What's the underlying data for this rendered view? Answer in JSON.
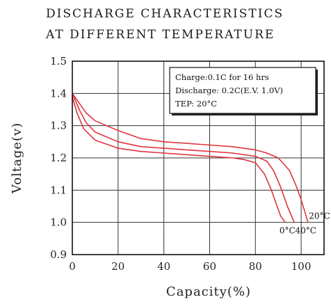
{
  "chart_data": {
    "type": "line",
    "title": [
      "DISCHARGE  CHARACTERISTICS",
      "AT  DIFFERENT  TEMPERATURE"
    ],
    "xlabel": "Capacity(%)",
    "ylabel": "Voltage(v)",
    "xlim": [
      0,
      110
    ],
    "ylim": [
      0.9,
      1.5
    ],
    "xticks": [
      "0",
      "20",
      "40",
      "60",
      "80",
      "100"
    ],
    "xtick_values": [
      0,
      20,
      40,
      60,
      80,
      100
    ],
    "yticks": [
      "0.9",
      "1.0",
      "1.1",
      "1.2",
      "1.3",
      "1.4",
      "1.5"
    ],
    "ytick_values": [
      0.9,
      1.0,
      1.1,
      1.2,
      1.3,
      1.4,
      1.5
    ],
    "grid": true,
    "line_color": "#e0343e",
    "annotation_box": [
      "Charge:0.1C  for  16  hrs",
      "Discharge:  0.2C(E.V.  1.0V)",
      "TEP:  20°C"
    ],
    "series": [
      {
        "name": "0°C",
        "label_anchor": [
          94,
          0.975
        ],
        "x": [
          0,
          2,
          5,
          10,
          20,
          30,
          40,
          50,
          60,
          70,
          75,
          80,
          84,
          87,
          89,
          91,
          93
        ],
        "y": [
          1.39,
          1.34,
          1.29,
          1.255,
          1.23,
          1.22,
          1.215,
          1.21,
          1.205,
          1.2,
          1.195,
          1.185,
          1.15,
          1.1,
          1.06,
          1.02,
          1.0
        ]
      },
      {
        "name": "40°C",
        "label_anchor": [
          102,
          0.975
        ],
        "x": [
          0,
          3,
          6,
          10,
          20,
          30,
          40,
          50,
          60,
          70,
          80,
          85,
          88,
          91,
          94,
          97
        ],
        "y": [
          1.4,
          1.35,
          1.31,
          1.28,
          1.25,
          1.235,
          1.23,
          1.225,
          1.22,
          1.215,
          1.205,
          1.19,
          1.16,
          1.11,
          1.05,
          1.0
        ]
      },
      {
        "name": "20°C",
        "label_anchor": [
          108,
          1.02
        ],
        "x": [
          0,
          3,
          6,
          10,
          15,
          20,
          30,
          40,
          50,
          60,
          70,
          80,
          85,
          90,
          95,
          98,
          100,
          103
        ],
        "y": [
          1.4,
          1.37,
          1.34,
          1.315,
          1.3,
          1.285,
          1.26,
          1.25,
          1.245,
          1.24,
          1.235,
          1.225,
          1.215,
          1.2,
          1.16,
          1.11,
          1.07,
          1.0
        ]
      }
    ]
  }
}
